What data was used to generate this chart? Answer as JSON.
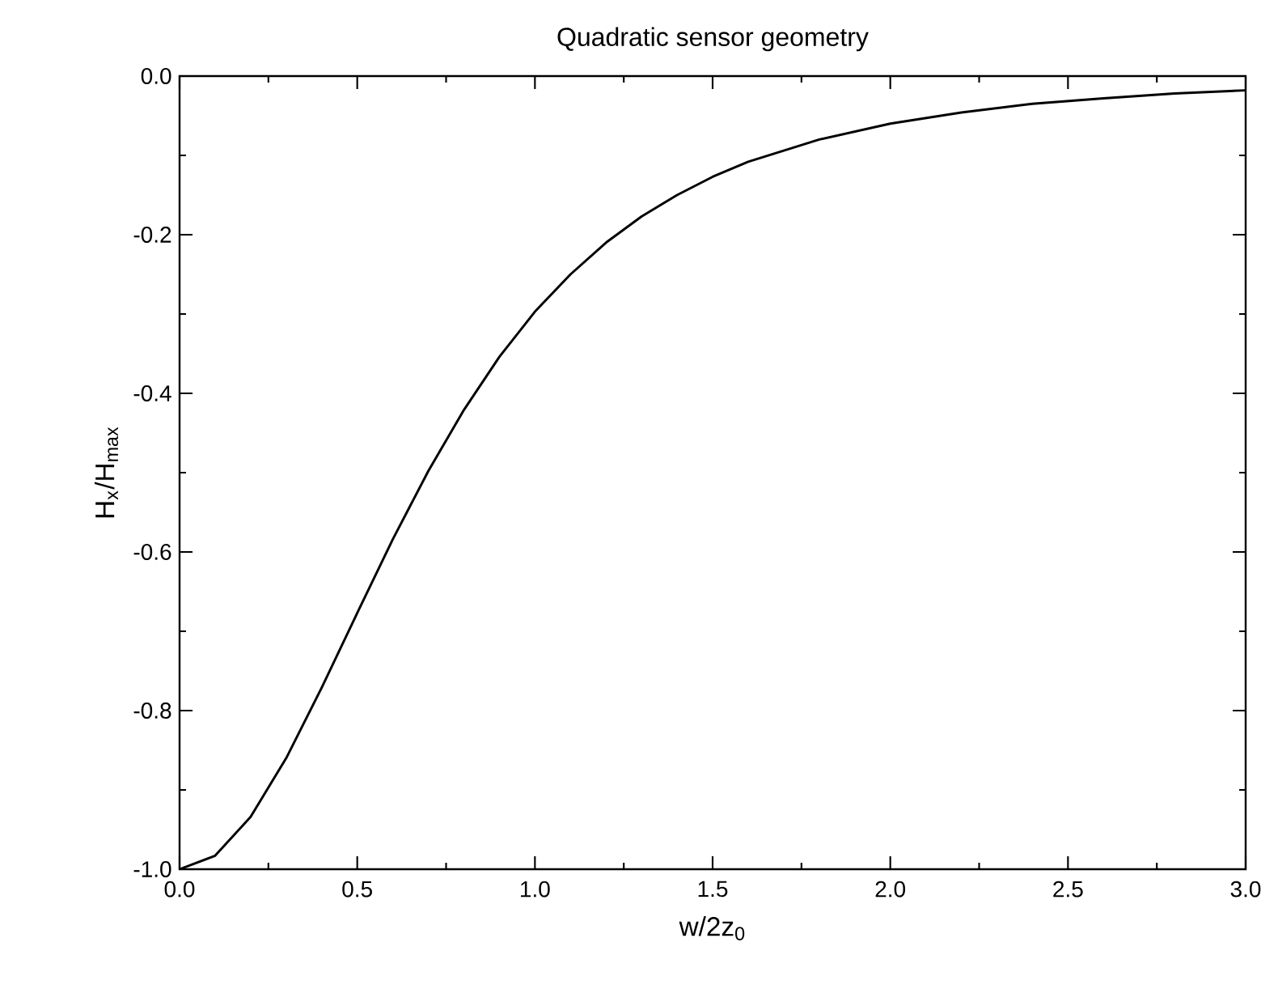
{
  "chart_data": {
    "type": "line",
    "title": "Quadratic sensor geometry",
    "xlabel": "w/2z$_{0}$",
    "ylabel": "H$_{x}$/H$_{max}$",
    "xlim": [
      0,
      3.0
    ],
    "ylim": [
      -1.0,
      0.0
    ],
    "xticks": [
      {
        "value": 0,
        "label": "0.0"
      },
      {
        "value": 0.5,
        "label": "0.5"
      },
      {
        "value": 1.0,
        "label": "1.0"
      },
      {
        "value": 1.5,
        "label": "1.5"
      },
      {
        "value": 2.0,
        "label": "2.0"
      },
      {
        "value": 2.5,
        "label": "2.5"
      },
      {
        "value": 3.0,
        "label": "3.0"
      }
    ],
    "yticks": [
      {
        "value": -1.0,
        "label": "-1.0"
      },
      {
        "value": -0.8,
        "label": "-0.8"
      },
      {
        "value": -0.6,
        "label": "-0.6"
      },
      {
        "value": -0.4,
        "label": "-0.4"
      },
      {
        "value": -0.2,
        "label": "-0.2"
      },
      {
        "value": 0.0,
        "label": "0.0"
      }
    ],
    "grid": false,
    "legend": false,
    "marker": "none",
    "line_style": "solid",
    "series": [
      {
        "color": "#000000",
        "x": [
          0,
          0.1,
          0.2,
          0.3,
          0.4,
          0.5,
          0.6,
          0.7,
          0.8,
          0.9,
          1.0,
          1.1,
          1.2,
          1.3,
          1.4,
          1.5,
          1.6,
          1.8,
          2.0,
          2.2,
          2.4,
          2.6,
          2.8,
          3.0
        ],
        "values": [
          -1.0,
          -0.983,
          -0.934,
          -0.86,
          -0.771,
          -0.677,
          -0.584,
          -0.498,
          -0.421,
          -0.354,
          -0.297,
          -0.25,
          -0.21,
          -0.177,
          -0.15,
          -0.127,
          -0.108,
          -0.08,
          -0.06,
          -0.046,
          -0.035,
          -0.028,
          -0.022,
          -0.018
        ]
      }
    ]
  }
}
